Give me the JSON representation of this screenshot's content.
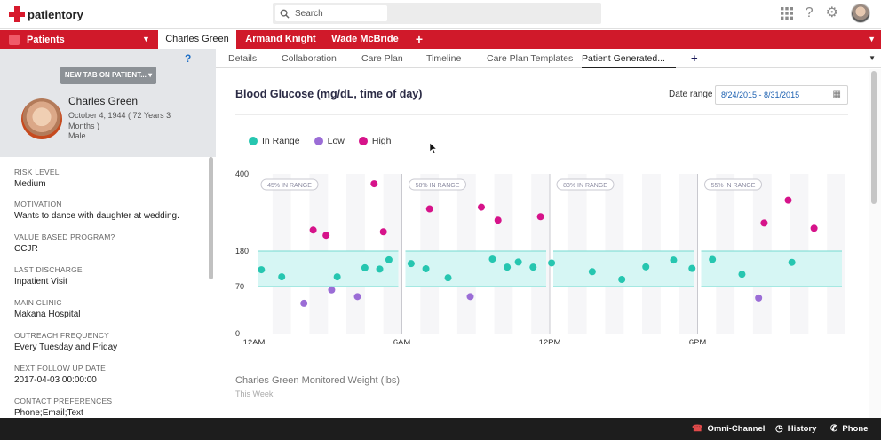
{
  "header": {
    "brand": "patientory",
    "search_placeholder": "Search",
    "icons": [
      "apps-grid-icon",
      "help-icon",
      "settings-gear-icon",
      "user-avatar"
    ]
  },
  "nav": {
    "app_label": "Patients",
    "tabs": [
      {
        "label": "Charles Green",
        "active": true
      },
      {
        "label": "Armand Knight",
        "active": false
      },
      {
        "label": "Wade McBride",
        "active": false
      }
    ],
    "add_tab": "+"
  },
  "sidebar": {
    "help": "?",
    "new_tab_button": "NEW TAB ON PATIENT...",
    "patient": {
      "name": "Charles Green",
      "dob": "October 4, 1944 ( 72 Years 3 Months )",
      "sex": "Male"
    },
    "fields": [
      {
        "label": "RISK LEVEL",
        "value": "Medium"
      },
      {
        "label": "MOTIVATION",
        "value": "Wants to dance with daughter at wedding."
      },
      {
        "label": "VALUE BASED PROGRAM?",
        "value": "CCJR"
      },
      {
        "label": "LAST DISCHARGE",
        "value": "Inpatient Visit"
      },
      {
        "label": "MAIN CLINIC",
        "value": "Makana Hospital"
      },
      {
        "label": "OUTREACH FREQUENCY",
        "value": "Every Tuesday and Friday"
      },
      {
        "label": "NEXT FOLLOW UP DATE",
        "value": "2017-04-03 00:00:00"
      },
      {
        "label": "CONTACT PREFERENCES",
        "value": "Phone;Email;Text"
      }
    ]
  },
  "subtabs": [
    {
      "label": "Details",
      "active": false
    },
    {
      "label": "Collaboration",
      "active": false
    },
    {
      "label": "Care Plan",
      "active": false
    },
    {
      "label": "Timeline",
      "active": false
    },
    {
      "label": "Care Plan Templates",
      "active": false
    },
    {
      "label": "Patient Generated...",
      "active": true
    }
  ],
  "main": {
    "title": "Blood Glucose (mg/dL, time of day)",
    "date_range_label": "Date range",
    "date_range_value": "8/24/2015 - 8/31/2015",
    "weight_title": "Charles Green Monitored Weight (lbs)",
    "weight_subtitle": "This Week"
  },
  "colors": {
    "in_range": "#26c6b0",
    "low": "#9b6dd6",
    "high": "#d6138a",
    "band": "#d6f6f4",
    "band_line": "#74d9d0",
    "brand_red": "#d0192a"
  },
  "chart_data": {
    "type": "scatter",
    "title": "Blood Glucose (mg/dL, time of day)",
    "legend": [
      "In Range",
      "Low",
      "High"
    ],
    "legend_placement": "top-left",
    "y_ticks": [
      0,
      70,
      180,
      400
    ],
    "x_ticks": [
      "12AM",
      "6AM",
      "12PM",
      "6PM"
    ],
    "target_range": [
      70,
      180
    ],
    "panels": [
      {
        "badge": "45% IN RANGE"
      },
      {
        "badge": "58% IN RANGE"
      },
      {
        "badge": "83% IN RANGE"
      },
      {
        "badge": "55% IN RANGE"
      }
    ],
    "series": [
      {
        "name": "In Range",
        "points": [
          [
            0.4,
            122
          ],
          [
            1.5,
            100
          ],
          [
            4.5,
            100
          ],
          [
            6.0,
            128
          ],
          [
            6.8,
            124
          ],
          [
            7.3,
            153
          ],
          [
            8.5,
            141
          ],
          [
            9.3,
            125
          ],
          [
            10.5,
            97
          ],
          [
            12.9,
            155
          ],
          [
            13.7,
            130
          ],
          [
            14.3,
            146
          ],
          [
            15.1,
            130
          ],
          [
            16.1,
            143
          ],
          [
            18.3,
            116
          ],
          [
            19.9,
            92
          ],
          [
            21.2,
            131
          ],
          [
            22.7,
            152
          ],
          [
            23.7,
            126
          ],
          [
            24.8,
            154
          ],
          [
            26.4,
            108
          ],
          [
            29.1,
            145
          ]
        ]
      },
      {
        "name": "Low",
        "points": [
          [
            2.7,
            45
          ],
          [
            4.2,
            65
          ],
          [
            5.6,
            55
          ],
          [
            11.7,
            55
          ],
          [
            27.3,
            53
          ]
        ]
      },
      {
        "name": "High",
        "points": [
          [
            3.2,
            240
          ],
          [
            3.9,
            225
          ],
          [
            6.5,
            372
          ],
          [
            7.0,
            235
          ],
          [
            9.5,
            300
          ],
          [
            12.3,
            305
          ],
          [
            13.2,
            268
          ],
          [
            15.5,
            278
          ],
          [
            27.6,
            260
          ],
          [
            28.9,
            325
          ],
          [
            30.3,
            245
          ]
        ]
      }
    ],
    "x_range": [
      0,
      32
    ],
    "y_range": [
      0,
      400
    ]
  },
  "footer": {
    "omni": "Omni-Channel",
    "history": "History",
    "phone": "Phone"
  }
}
